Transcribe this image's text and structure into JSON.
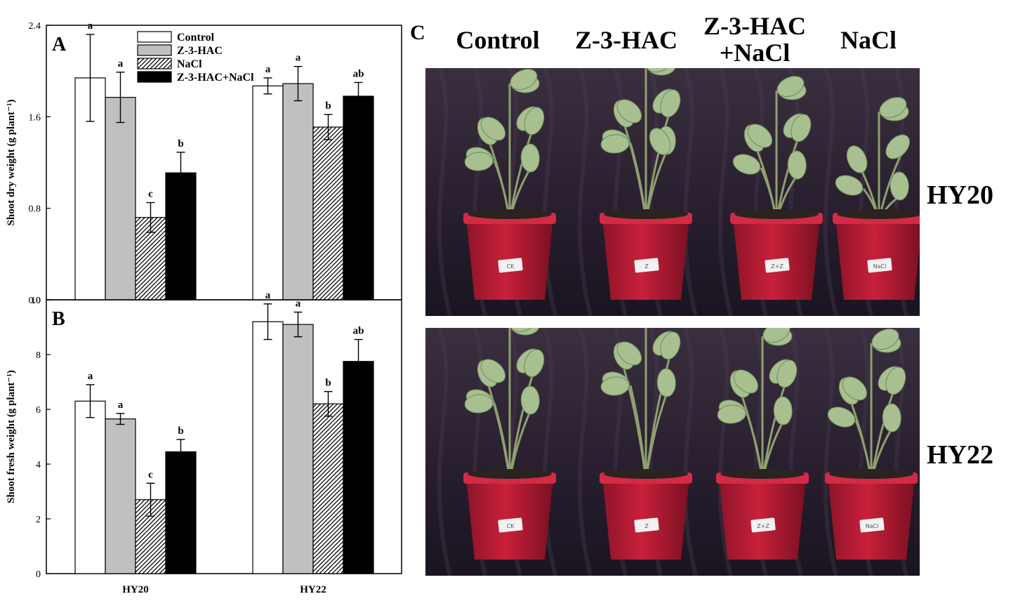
{
  "colors": {
    "control": "#ffffff",
    "z3hac": "#c0c0c0",
    "nacl": "hatched",
    "z3hac_nacl": "#000000",
    "photo_background": "#2a2030",
    "pot": "#c8203a",
    "leaf": "#a8c090"
  },
  "legend": {
    "items": [
      {
        "key": "control",
        "label": "Control"
      },
      {
        "key": "z3hac",
        "label": "Z-3-HAC"
      },
      {
        "key": "nacl",
        "label": "NaCl"
      },
      {
        "key": "z3hac_nacl",
        "label": "Z-3-HAC+NaCl"
      }
    ]
  },
  "chart_data": [
    {
      "panel": "A",
      "type": "bar",
      "ylabel": "Shoot dry weight (g plant⁻¹)",
      "xlabel": "",
      "categories": [
        "HY20",
        "HY22"
      ],
      "ylim": [
        0,
        2.4
      ],
      "yticks": [
        "0.0",
        "0.8",
        "1.6",
        "2.4"
      ],
      "grid": false,
      "legend_position": "top-center",
      "series": [
        {
          "name": "Control",
          "values": [
            1.94,
            1.87
          ],
          "errors": [
            0.38,
            0.07
          ],
          "letters": [
            "a",
            "a"
          ]
        },
        {
          "name": "Z-3-HAC",
          "values": [
            1.77,
            1.89
          ],
          "errors": [
            0.22,
            0.15
          ],
          "letters": [
            "a",
            "a"
          ]
        },
        {
          "name": "NaCl",
          "values": [
            0.72,
            1.51
          ],
          "errors": [
            0.13,
            0.11
          ],
          "letters": [
            "c",
            "b"
          ]
        },
        {
          "name": "Z-3-HAC+NaCl",
          "values": [
            1.11,
            1.78
          ],
          "errors": [
            0.18,
            0.12
          ],
          "letters": [
            "b",
            "ab"
          ]
        }
      ]
    },
    {
      "panel": "B",
      "type": "bar",
      "ylabel": "Shoot fresh weight (g plant⁻¹)",
      "xlabel": "",
      "categories": [
        "HY20",
        "HY22"
      ],
      "ylim": [
        0,
        10
      ],
      "yticks": [
        "0",
        "2",
        "4",
        "6",
        "8",
        "10"
      ],
      "grid": false,
      "series": [
        {
          "name": "Control",
          "values": [
            6.3,
            9.2
          ],
          "errors": [
            0.6,
            0.65
          ],
          "letters": [
            "a",
            "a"
          ]
        },
        {
          "name": "Z-3-HAC",
          "values": [
            5.65,
            9.1
          ],
          "errors": [
            0.2,
            0.45
          ],
          "letters": [
            "a",
            "a"
          ]
        },
        {
          "name": "NaCl",
          "values": [
            2.7,
            6.2
          ],
          "errors": [
            0.6,
            0.45
          ],
          "letters": [
            "c",
            "b"
          ]
        },
        {
          "name": "Z-3-HAC+NaCl",
          "values": [
            4.45,
            7.75
          ],
          "errors": [
            0.45,
            0.8
          ],
          "letters": [
            "b",
            "ab"
          ]
        }
      ]
    }
  ],
  "panel_c": {
    "letter": "C",
    "treatments": [
      "Control",
      "Z-3-HAC",
      "Z-3-HAC\n+NaCl",
      "NaCl"
    ],
    "cultivars": [
      "HY20",
      "HY22"
    ],
    "pot_tags": [
      [
        "CK",
        "Z",
        "Z+Z",
        "NaCl"
      ],
      [
        "CK",
        "Z",
        "Z+Z",
        "NaCl"
      ]
    ]
  }
}
